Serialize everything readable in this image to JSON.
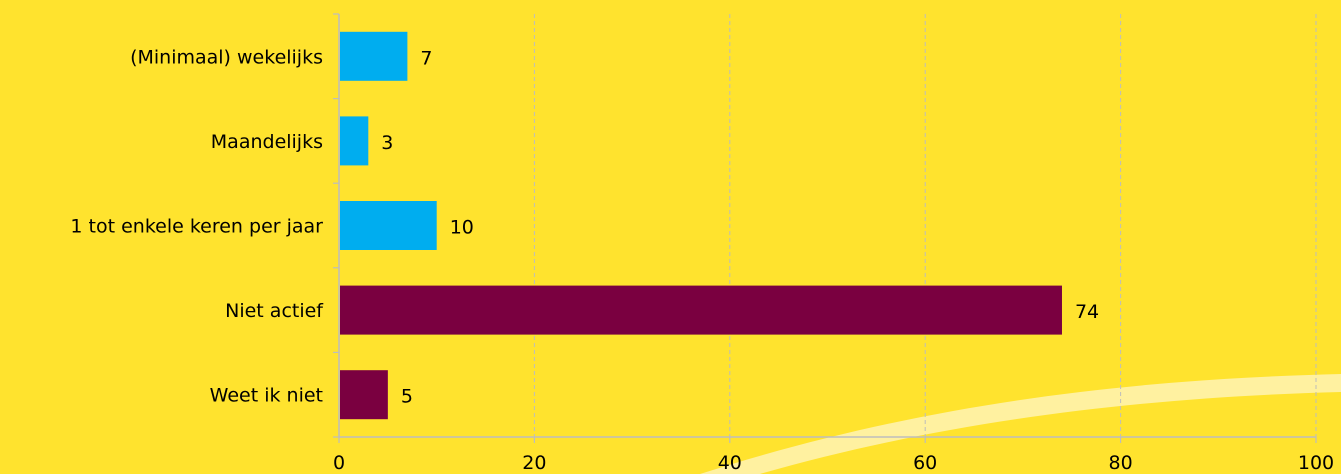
{
  "colors": {
    "background": "#FFE32E",
    "swoosh": "#FFF1A0",
    "grid": "#BDBDBD",
    "axis": "#BDBDBD",
    "active_bar": "#00ADEF",
    "inactive_bar": "#7A0040"
  },
  "chart_data": {
    "type": "bar",
    "orientation": "horizontal",
    "categories": [
      "(Minimaal) wekelijks",
      "Maandelijks",
      "1 tot enkele keren per jaar",
      "Niet actief",
      "Weet ik niet"
    ],
    "values": [
      7,
      3,
      10,
      74,
      5
    ],
    "value_labels": [
      "7",
      "3",
      "10",
      "74",
      "5"
    ],
    "bar_colors": [
      "#00ADEF",
      "#00ADEF",
      "#00ADEF",
      "#7A0040",
      "#7A0040"
    ],
    "xlim": [
      0,
      100
    ],
    "xticks": [
      0,
      20,
      40,
      60,
      80,
      100
    ],
    "xtick_labels": [
      "0",
      "20",
      "40",
      "60",
      "80",
      "100"
    ],
    "grid": "vertical dashed",
    "title": "",
    "xlabel": "",
    "ylabel": ""
  }
}
